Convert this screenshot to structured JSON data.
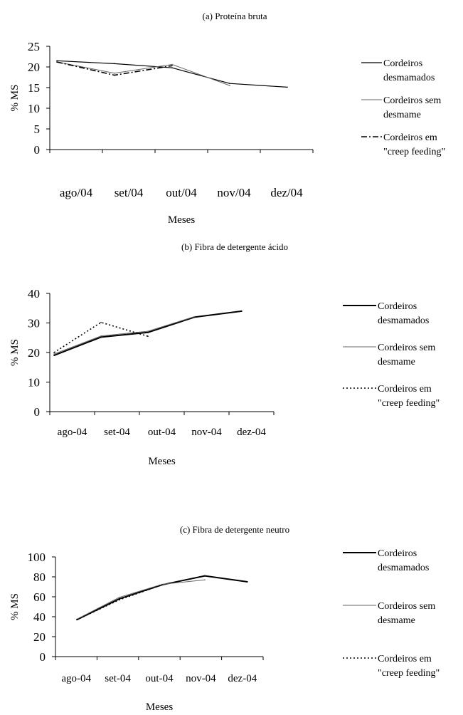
{
  "chart_data": [
    {
      "type": "line",
      "title": "(a) Proteína bruta",
      "xlabel": "Meses",
      "ylabel": "% MS",
      "categories": [
        "ago/04",
        "set/04",
        "out/04",
        "nov/04",
        "dez/04"
      ],
      "ylim": [
        0,
        25
      ],
      "yticks": [
        0,
        5,
        10,
        15,
        20,
        25
      ],
      "grid": false,
      "legend_position": "right",
      "series": [
        {
          "name": "Cordeiros desmamados",
          "name_lines": [
            "Cordeiros",
            "desmamados"
          ],
          "style": "solid",
          "color": "#000000",
          "values": [
            21.5,
            20.8,
            19.8,
            16.0,
            15.1
          ]
        },
        {
          "name": "Cordeiros sem desmame",
          "name_lines": [
            "Cordeiros sem",
            "desmame"
          ],
          "style": "thin",
          "color": "#555555",
          "values": [
            21.2,
            18.5,
            20.6,
            15.5,
            null
          ]
        },
        {
          "name": "Cordeiros em \"creep feeding\"",
          "name_lines": [
            "Cordeiros em",
            "\"creep feeding\""
          ],
          "style": "dashdot",
          "color": "#000000",
          "values": [
            21.2,
            18.0,
            20.3,
            null,
            null
          ]
        }
      ]
    },
    {
      "type": "line",
      "title": "(b) Fibra de detergente ácido",
      "xlabel": "Meses",
      "ylabel": "% MS",
      "categories": [
        "ago-04",
        "set-04",
        "out-04",
        "nov-04",
        "dez-04"
      ],
      "ylim": [
        0,
        40
      ],
      "yticks": [
        0,
        10,
        20,
        30,
        40
      ],
      "grid": false,
      "legend_position": "right",
      "series": [
        {
          "name": "Cordeiros desmamados",
          "name_lines": [
            "Cordeiros",
            "desmamados"
          ],
          "style": "thick",
          "color": "#000000",
          "values": [
            19.0,
            25.2,
            26.8,
            32.0,
            34.0
          ]
        },
        {
          "name": "Cordeiros sem desmame",
          "name_lines": [
            "Cordeiros sem",
            "desmame"
          ],
          "style": "thin",
          "color": "#555555",
          "values": [
            19.5,
            25.6,
            27.2,
            32.2,
            null
          ]
        },
        {
          "name": "Cordeiros em \"creep feeding\"",
          "name_lines": [
            "Cordeiros em",
            "\"creep feeding\""
          ],
          "style": "dotted",
          "color": "#000000",
          "values": [
            20.0,
            30.2,
            25.5,
            null,
            null
          ]
        }
      ]
    },
    {
      "type": "line",
      "title": "(c) Fibra de detergente neutro",
      "xlabel": "Meses",
      "ylabel": "% MS",
      "categories": [
        "ago-04",
        "set-04",
        "out-04",
        "nov-04",
        "dez-04"
      ],
      "ylim": [
        0,
        100
      ],
      "yticks": [
        0,
        20,
        40,
        60,
        80,
        100
      ],
      "grid": false,
      "legend_position": "right",
      "series": [
        {
          "name": "Cordeiros desmamados",
          "name_lines": [
            "Cordeiros",
            "desmamados"
          ],
          "style": "thick",
          "color": "#000000",
          "values": [
            37.0,
            58.0,
            72.0,
            81.0,
            75.0
          ]
        },
        {
          "name": "Cordeiros sem desmame",
          "name_lines": [
            "Cordeiros sem",
            "desmame"
          ],
          "style": "thin",
          "color": "#555555",
          "values": [
            37.5,
            59.5,
            72.5,
            77.0,
            null
          ]
        },
        {
          "name": "Cordeiros em \"creep feeding\"",
          "name_lines": [
            "Cordeiros em",
            "\"creep feeding\""
          ],
          "style": "dotted",
          "color": "#000000",
          "values": [
            37.0,
            57.0,
            72.0,
            null,
            null
          ]
        }
      ]
    }
  ]
}
